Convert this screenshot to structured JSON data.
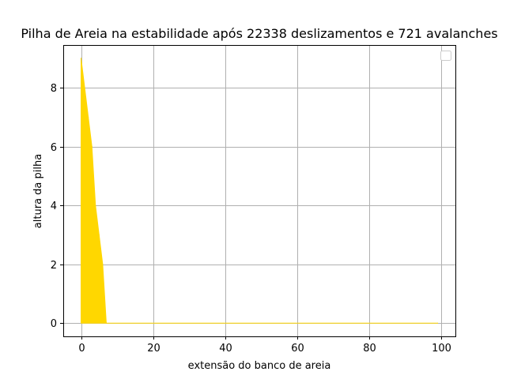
{
  "chart_data": {
    "type": "area",
    "title": "Pilha de Areia na estabilidade após 22338 deslizamentos e 721 avalanches",
    "xlabel": "extensão do banco de areia",
    "ylabel": "altura da pilha",
    "xlim": [
      -4.95,
      103.95
    ],
    "ylim": [
      -0.45,
      9.45
    ],
    "x_ticks": [
      0,
      20,
      40,
      60,
      80,
      100
    ],
    "y_ticks": [
      0,
      2,
      4,
      6,
      8
    ],
    "grid": true,
    "legend": "top-right",
    "fill_color": "#ffd700",
    "x": [
      0,
      1,
      2,
      3,
      4,
      5,
      6,
      7,
      99
    ],
    "y": [
      9,
      8,
      7,
      6,
      4,
      3,
      2,
      0,
      0
    ]
  }
}
